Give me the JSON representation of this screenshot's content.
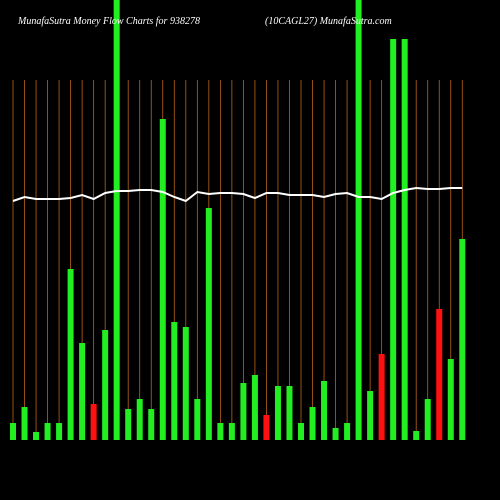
{
  "chart_data": {
    "type": "bar",
    "title": "MunafaSutra  Money Flow  Charts for 938278",
    "subtitle": "(10CAGL27) MunafaSutra.com",
    "categories": [
      null,
      null,
      null,
      null,
      null,
      null,
      null,
      null,
      null,
      null,
      null,
      null,
      null,
      null,
      null,
      null,
      null,
      null,
      null,
      null,
      null,
      null,
      null,
      null,
      null,
      null,
      null,
      null,
      null,
      null,
      null,
      null,
      null,
      null,
      null,
      null,
      null,
      null,
      null,
      null
    ],
    "values": [
      17,
      33,
      8,
      17,
      17,
      171,
      97,
      36,
      110,
      445,
      31,
      41,
      31,
      321,
      118,
      113,
      41,
      232,
      17,
      17,
      57,
      65,
      25,
      54,
      54,
      17,
      33,
      59,
      12,
      17,
      445,
      49,
      86,
      401,
      401,
      9,
      41,
      131,
      81,
      201
    ],
    "colors": [
      "#22ee22",
      "#22ee22",
      "#22ee22",
      "#22ee22",
      "#22ee22",
      "#22ee22",
      "#22ee22",
      "#ff1111",
      "#22ee22",
      "#22ee22",
      "#22ee22",
      "#22ee22",
      "#22ee22",
      "#22ee22",
      "#22ee22",
      "#22ee22",
      "#22ee22",
      "#22ee22",
      "#22ee22",
      "#22ee22",
      "#22ee22",
      "#22ee22",
      "#ff1111",
      "#22ee22",
      "#22ee22",
      "#22ee22",
      "#22ee22",
      "#22ee22",
      "#22ee22",
      "#22ee22",
      "#22ee22",
      "#22ee22",
      "#ff1111",
      "#22ee22",
      "#22ee22",
      "#22ee22",
      "#22ee22",
      "#ff1111",
      "#22ee22",
      "#22ee22"
    ],
    "line_values": [
      239,
      243,
      241,
      241,
      241,
      242,
      245,
      241,
      247,
      249,
      249,
      250,
      250,
      248,
      243,
      239,
      248,
      246,
      247,
      247,
      246,
      242,
      247,
      247,
      245,
      245,
      245,
      243,
      246,
      247,
      243,
      243,
      241,
      247,
      250,
      252,
      251,
      251,
      252,
      252
    ],
    "line_color": "#ffffff",
    "grid_color": "#b8651a",
    "ylim": [
      0,
      440
    ]
  }
}
